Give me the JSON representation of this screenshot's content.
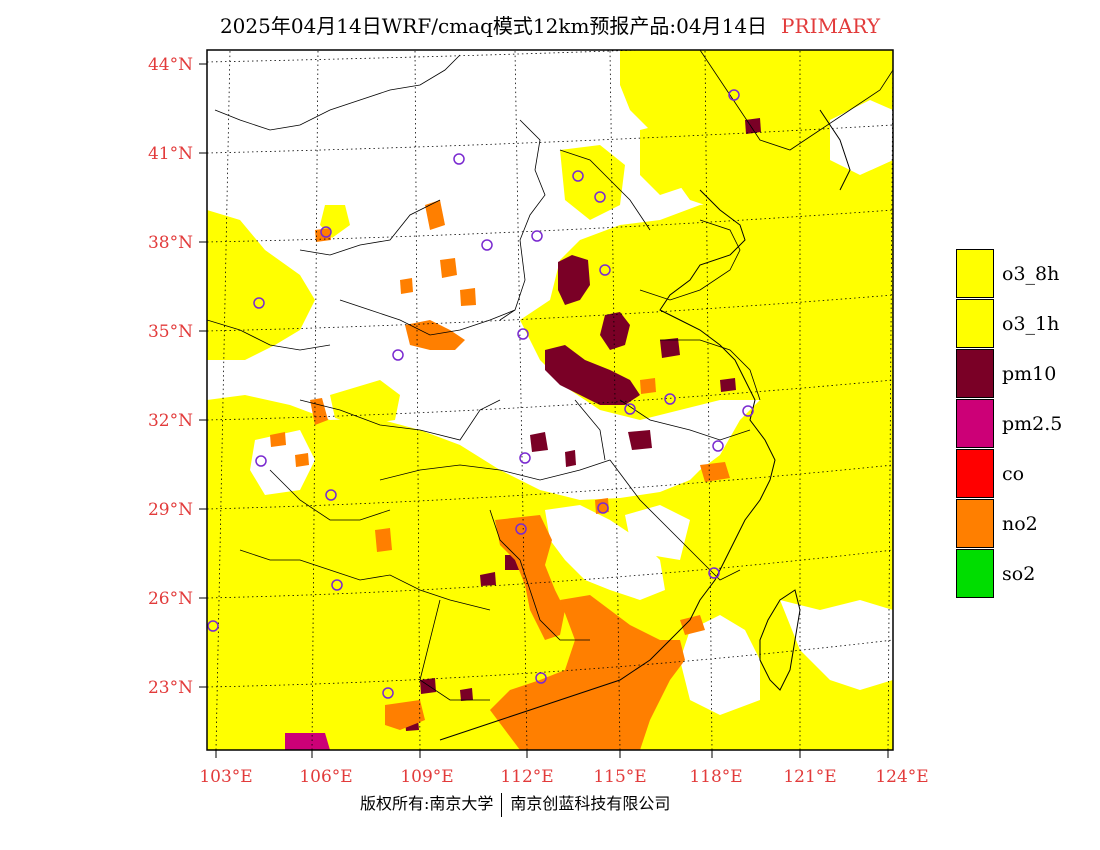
{
  "title": {
    "main": "2025年04月14日WRF/cmaq模式12km预报产品:04月14日",
    "tag": "PRIMARY"
  },
  "axes": {
    "lat_ticks": [
      "44°N",
      "41°N",
      "38°N",
      "35°N",
      "32°N",
      "29°N",
      "26°N",
      "23°N"
    ],
    "lon_ticks": [
      "103°E",
      "106°E",
      "109°E",
      "112°E",
      "115°E",
      "118°E",
      "121°E",
      "124°E"
    ]
  },
  "legend": [
    {
      "label": "o3_8h",
      "color": "#ffff00"
    },
    {
      "label": "o3_1h",
      "color": "#ffff00"
    },
    {
      "label": "pm10",
      "color": "#7a0026"
    },
    {
      "label": "pm2.5",
      "color": "#cc0077"
    },
    {
      "label": "co",
      "color": "#ff0000"
    },
    {
      "label": "no2",
      "color": "#ff7f00"
    },
    {
      "label": "so2",
      "color": "#00dd00"
    }
  ],
  "footer": {
    "left": "版权所有:南京大学",
    "right": "南京创蓝科技有限公司"
  },
  "colors": {
    "tick": "#e23b3b",
    "station": "#7a2ad0",
    "background": "#ffffff"
  }
}
